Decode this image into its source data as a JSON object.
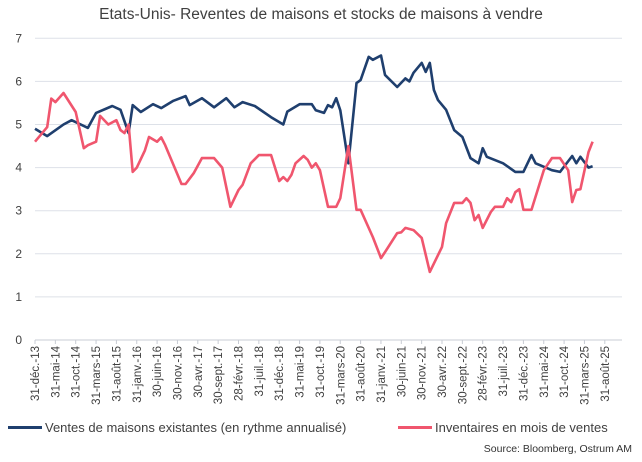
{
  "chart_data": {
    "type": "line",
    "title": "Etats-Unis-  Reventes de maisons et stocks de maisons à vendre",
    "xlabel": "",
    "ylabel": "",
    "ylim": [
      0,
      7
    ],
    "yticks": [
      "0",
      "1",
      "2",
      "3",
      "4",
      "5",
      "6",
      "7"
    ],
    "grid": true,
    "legend_position": "bottom",
    "xtick_labels": [
      "31-déc.-13",
      "31-mai-14",
      "31-oct.-14",
      "31-mars-15",
      "31-août-15",
      "31-janv.-16",
      "30-juin-16",
      "30-nov.-16",
      "30-avr.-17",
      "30-sept.-17",
      "28-févr.-18",
      "31-juil.-18",
      "31-déc.-18",
      "31-mai-19",
      "31-oct.-19",
      "31-mars-20",
      "31-août-20",
      "31-janv.-21",
      "30-juin-21",
      "30-nov.-21",
      "30-avr.-22",
      "30-sept.-22",
      "28-févr.-23",
      "31-juil.-23",
      "31-déc.-23",
      "31-mai-24",
      "31-oct.-24",
      "31-mars-25",
      "31-août-25"
    ],
    "series": [
      {
        "name": "Ventes de maisons existantes (en rythme annualisé)",
        "color": "#1f3f6e",
        "points": [
          [
            "2013-12",
            4.9
          ],
          [
            "2014-03",
            4.73
          ],
          [
            "2014-07",
            5.0
          ],
          [
            "2014-09",
            5.1
          ],
          [
            "2015-01",
            4.92
          ],
          [
            "2015-03",
            5.27
          ],
          [
            "2015-07",
            5.43
          ],
          [
            "2015-09",
            5.34
          ],
          [
            "2015-11",
            4.8
          ],
          [
            "2015-12",
            5.45
          ],
          [
            "2016-02",
            5.29
          ],
          [
            "2016-05",
            5.47
          ],
          [
            "2016-07",
            5.38
          ],
          [
            "2016-10",
            5.55
          ],
          [
            "2017-01",
            5.66
          ],
          [
            "2017-02",
            5.45
          ],
          [
            "2017-05",
            5.61
          ],
          [
            "2017-08",
            5.4
          ],
          [
            "2017-11",
            5.61
          ],
          [
            "2018-01",
            5.4
          ],
          [
            "2018-03",
            5.52
          ],
          [
            "2018-06",
            5.43
          ],
          [
            "2018-10",
            5.17
          ],
          [
            "2019-01",
            5.0
          ],
          [
            "2019-02",
            5.3
          ],
          [
            "2019-05",
            5.47
          ],
          [
            "2019-08",
            5.47
          ],
          [
            "2019-09",
            5.33
          ],
          [
            "2019-11",
            5.27
          ],
          [
            "2019-12",
            5.45
          ],
          [
            "2020-01",
            5.4
          ],
          [
            "2020-02",
            5.61
          ],
          [
            "2020-03",
            5.33
          ],
          [
            "2020-05",
            4.1
          ],
          [
            "2020-07",
            5.96
          ],
          [
            "2020-08",
            6.03
          ],
          [
            "2020-10",
            6.57
          ],
          [
            "2020-11",
            6.5
          ],
          [
            "2021-01",
            6.6
          ],
          [
            "2021-02",
            6.15
          ],
          [
            "2021-05",
            5.87
          ],
          [
            "2021-07",
            6.07
          ],
          [
            "2021-08",
            6.0
          ],
          [
            "2021-09",
            6.2
          ],
          [
            "2021-11",
            6.43
          ],
          [
            "2021-12",
            6.22
          ],
          [
            "2022-01",
            6.43
          ],
          [
            "2022-02",
            5.8
          ],
          [
            "2022-03",
            5.57
          ],
          [
            "2022-05",
            5.34
          ],
          [
            "2022-07",
            4.87
          ],
          [
            "2022-09",
            4.71
          ],
          [
            "2022-11",
            4.22
          ],
          [
            "2023-01",
            4.1
          ],
          [
            "2023-02",
            4.45
          ],
          [
            "2023-03",
            4.25
          ],
          [
            "2023-07",
            4.1
          ],
          [
            "2023-10",
            3.9
          ],
          [
            "2023-12",
            3.9
          ],
          [
            "2024-02",
            4.29
          ],
          [
            "2024-03",
            4.1
          ],
          [
            "2024-07",
            3.94
          ],
          [
            "2024-09",
            3.9
          ],
          [
            "2024-12",
            4.27
          ],
          [
            "2025-01",
            4.1
          ],
          [
            "2025-02",
            4.25
          ],
          [
            "2025-04",
            4.0
          ],
          [
            "2025-05",
            4.03
          ]
        ]
      },
      {
        "name": "Inventaires en mois de ventes",
        "color": "#f0566e",
        "points": [
          [
            "2013-12",
            4.6
          ],
          [
            "2014-03",
            4.94
          ],
          [
            "2014-04",
            5.6
          ],
          [
            "2014-05",
            5.52
          ],
          [
            "2014-07",
            5.73
          ],
          [
            "2014-10",
            5.29
          ],
          [
            "2014-12",
            4.45
          ],
          [
            "2015-01",
            4.52
          ],
          [
            "2015-03",
            4.6
          ],
          [
            "2015-04",
            5.2
          ],
          [
            "2015-06",
            5.0
          ],
          [
            "2015-08",
            5.1
          ],
          [
            "2015-09",
            4.87
          ],
          [
            "2015-10",
            4.8
          ],
          [
            "2015-11",
            5.0
          ],
          [
            "2015-12",
            3.9
          ],
          [
            "2016-01",
            4.0
          ],
          [
            "2016-03",
            4.4
          ],
          [
            "2016-04",
            4.71
          ],
          [
            "2016-06",
            4.6
          ],
          [
            "2016-07",
            4.7
          ],
          [
            "2016-08",
            4.52
          ],
          [
            "2016-12",
            3.62
          ],
          [
            "2017-01",
            3.62
          ],
          [
            "2017-03",
            3.87
          ],
          [
            "2017-05",
            4.22
          ],
          [
            "2017-08",
            4.22
          ],
          [
            "2017-10",
            4.0
          ],
          [
            "2017-12",
            3.09
          ],
          [
            "2018-02",
            3.48
          ],
          [
            "2018-03",
            3.6
          ],
          [
            "2018-05",
            4.1
          ],
          [
            "2018-07",
            4.29
          ],
          [
            "2018-10",
            4.29
          ],
          [
            "2018-12",
            3.69
          ],
          [
            "2019-01",
            3.78
          ],
          [
            "2019-02",
            3.69
          ],
          [
            "2019-03",
            3.83
          ],
          [
            "2019-04",
            4.1
          ],
          [
            "2019-06",
            4.27
          ],
          [
            "2019-07",
            4.18
          ],
          [
            "2019-08",
            4.0
          ],
          [
            "2019-09",
            4.1
          ],
          [
            "2019-10",
            3.94
          ],
          [
            "2019-12",
            3.09
          ],
          [
            "2020-02",
            3.09
          ],
          [
            "2020-03",
            3.29
          ],
          [
            "2020-05",
            4.5
          ],
          [
            "2020-07",
            3.02
          ],
          [
            "2020-08",
            3.02
          ],
          [
            "2020-11",
            2.39
          ],
          [
            "2021-01",
            1.9
          ],
          [
            "2021-02",
            2.04
          ],
          [
            "2021-05",
            2.48
          ],
          [
            "2021-06",
            2.5
          ],
          [
            "2021-07",
            2.6
          ],
          [
            "2021-09",
            2.55
          ],
          [
            "2021-11",
            2.37
          ],
          [
            "2022-01",
            1.58
          ],
          [
            "2022-04",
            2.16
          ],
          [
            "2022-05",
            2.71
          ],
          [
            "2022-07",
            3.18
          ],
          [
            "2022-09",
            3.18
          ],
          [
            "2022-10",
            3.29
          ],
          [
            "2022-11",
            3.18
          ],
          [
            "2022-12",
            2.78
          ],
          [
            "2023-01",
            2.9
          ],
          [
            "2023-02",
            2.6
          ],
          [
            "2023-04",
            2.97
          ],
          [
            "2023-05",
            3.09
          ],
          [
            "2023-07",
            3.09
          ],
          [
            "2023-08",
            3.29
          ],
          [
            "2023-09",
            3.2
          ],
          [
            "2023-10",
            3.43
          ],
          [
            "2023-11",
            3.5
          ],
          [
            "2023-12",
            3.02
          ],
          [
            "2024-02",
            3.02
          ],
          [
            "2024-05",
            3.94
          ],
          [
            "2024-07",
            4.22
          ],
          [
            "2024-09",
            4.22
          ],
          [
            "2024-11",
            3.94
          ],
          [
            "2024-12",
            3.2
          ],
          [
            "2025-01",
            3.48
          ],
          [
            "2025-02",
            3.5
          ],
          [
            "2025-04",
            4.36
          ],
          [
            "2025-05",
            4.6
          ]
        ]
      }
    ]
  },
  "source": "Source: Bloomberg, Ostrum AM"
}
